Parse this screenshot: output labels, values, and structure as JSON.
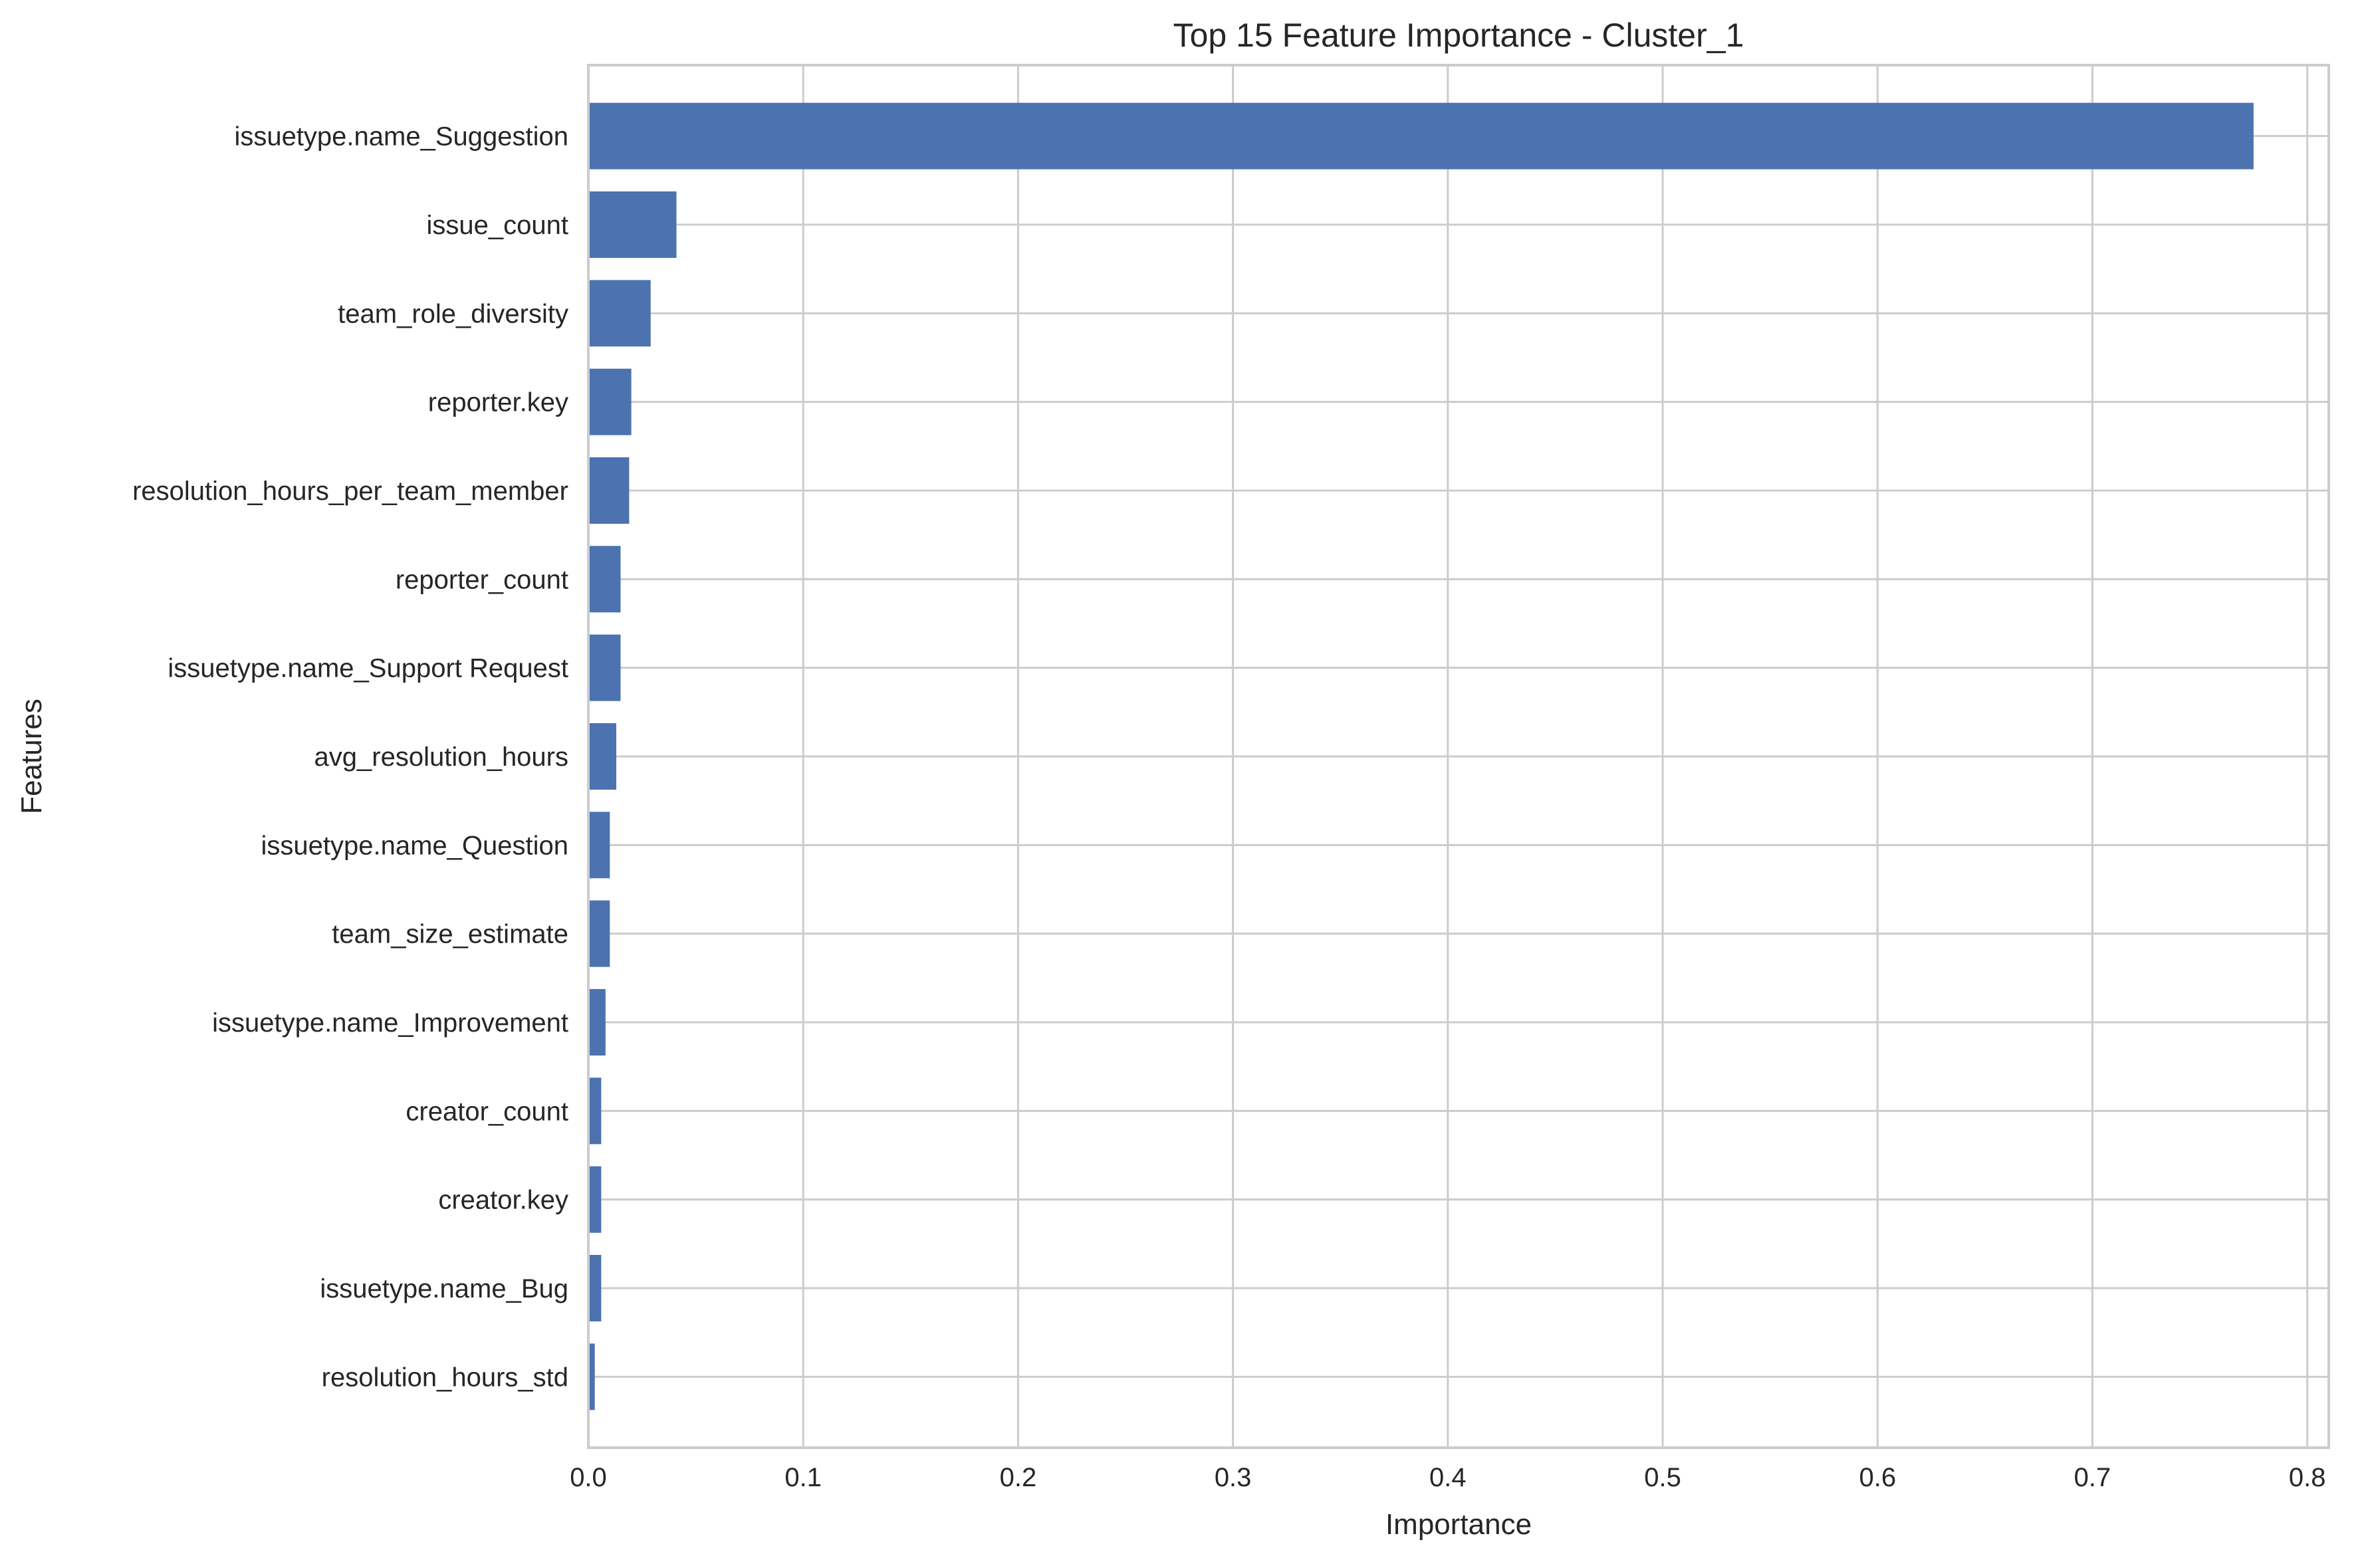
{
  "chart_data": {
    "type": "bar",
    "orientation": "horizontal",
    "title": "Top 15 Feature Importance - Cluster_1",
    "xlabel": "Importance",
    "ylabel": "Features",
    "xlim": [
      0,
      0.81
    ],
    "xticks": [
      0.0,
      0.1,
      0.2,
      0.3,
      0.4,
      0.5,
      0.6,
      0.7,
      0.8
    ],
    "xtick_labels": [
      "0.0",
      "0.1",
      "0.2",
      "0.3",
      "0.4",
      "0.5",
      "0.6",
      "0.7",
      "0.8"
    ],
    "grid": true,
    "bar_color": "#4c72b0",
    "categories": [
      "issuetype.name_Suggestion",
      "issue_count",
      "team_role_diversity",
      "reporter.key",
      "resolution_hours_per_team_member",
      "reporter_count",
      "issuetype.name_Support Request",
      "avg_resolution_hours",
      "issuetype.name_Question",
      "team_size_estimate",
      "issuetype.name_Improvement",
      "creator_count",
      "creator.key",
      "issuetype.name_Bug",
      "resolution_hours_std"
    ],
    "values": [
      0.775,
      0.041,
      0.029,
      0.02,
      0.019,
      0.015,
      0.015,
      0.013,
      0.01,
      0.01,
      0.008,
      0.006,
      0.006,
      0.006,
      0.003
    ]
  }
}
